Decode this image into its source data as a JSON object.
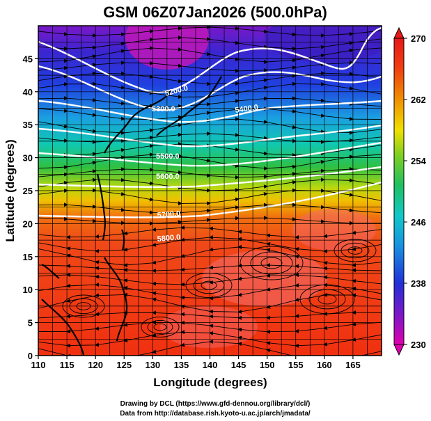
{
  "figure": {
    "title": "GSM 06Z07Jan2026 (500.0hPa)",
    "credit_line1": "Drawing by DCL (https://www.gfd-dennou.org/library/dcl/)",
    "credit_line2": "Data from http://database.rish.kyoto-u.ac.jp/arch/jmadata/"
  },
  "map": {
    "xlabel": "Longitude (degrees)",
    "ylabel": "Latitude  (degrees)",
    "x_ticks": [
      "110",
      "115",
      "120",
      "125",
      "130",
      "135",
      "140",
      "145",
      "150",
      "155",
      "160",
      "165"
    ],
    "y_ticks": [
      "0",
      "5",
      "10",
      "15",
      "20",
      "25",
      "30",
      "35",
      "40",
      "45"
    ],
    "lon_range": [
      110,
      170
    ],
    "lat_range": [
      0,
      50
    ],
    "grid": true,
    "coastline_color": "#000000",
    "field": "temperature shading with geopotential height contours and streamlines"
  },
  "colorbar": {
    "tick_labels": [
      "230",
      "238",
      "246",
      "254",
      "262",
      "270"
    ],
    "colors": [
      "#e000b0",
      "#7a18c8",
      "#2030d8",
      "#1890e0",
      "#10c8c8",
      "#20c060",
      "#80d020",
      "#f0e000",
      "#f09000",
      "#f04010",
      "#e81818"
    ]
  },
  "contours": {
    "labels": [
      "5200.0",
      "5300.0",
      "5400.0",
      "5500.0",
      "5600.0",
      "5700.0",
      "5800.0"
    ],
    "color": "#ffffff"
  }
}
